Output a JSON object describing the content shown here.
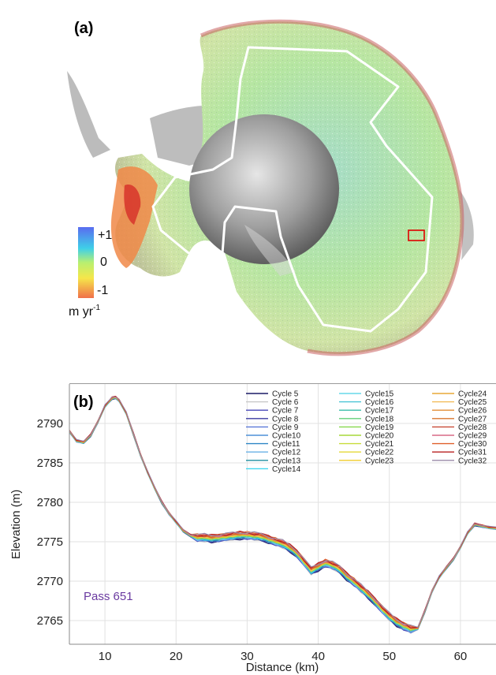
{
  "map": {
    "panel_label": "(a)",
    "colorbar": {
      "ticks": [
        "+1",
        "0",
        "-1"
      ],
      "unit_main": "m yr",
      "unit_sup": "-1",
      "colors": [
        "#5a6cf0",
        "#3fd0e8",
        "#b8f070",
        "#f6e64a",
        "#f0704a"
      ]
    },
    "highlight_box_color": "#e00000",
    "track_color": "#ffffff"
  },
  "chart_data": {
    "type": "line",
    "panel_label": "(b)",
    "annotation": "Pass 651",
    "xlabel": "Distance (km)",
    "ylabel": "Elevation (m)",
    "xlim": [
      5,
      65
    ],
    "ylim": [
      2762,
      2795
    ],
    "xticks": [
      10,
      20,
      30,
      40,
      50,
      60
    ],
    "yticks": [
      2765,
      2770,
      2775,
      2780,
      2785,
      2790
    ],
    "grid": true,
    "legend_position": "top-right",
    "profile": {
      "x": [
        5,
        6,
        7,
        8,
        9,
        10,
        11,
        11.5,
        12,
        13,
        14,
        15,
        16,
        17,
        18,
        19,
        20,
        21,
        22,
        23,
        24,
        25,
        26,
        27,
        28,
        29,
        30,
        31,
        32,
        33,
        34,
        35,
        36,
        37,
        38,
        39,
        40,
        41,
        42,
        43,
        44,
        45,
        46,
        47,
        48,
        49,
        50,
        51,
        52,
        53,
        54,
        55,
        56,
        57,
        58,
        59,
        60,
        61,
        62,
        63,
        64,
        65
      ],
      "y": [
        2789,
        2787.8,
        2787.6,
        2788.5,
        2790.2,
        2792.2,
        2793.2,
        2793.3,
        2792.9,
        2791.3,
        2788.7,
        2786,
        2783.8,
        2781.8,
        2780,
        2778.6,
        2777.5,
        2776.4,
        2775.8,
        2775.5,
        2775.5,
        2775.4,
        2775.5,
        2775.6,
        2775.7,
        2775.8,
        2775.8,
        2775.7,
        2775.6,
        2775.3,
        2775,
        2774.7,
        2774.2,
        2773.5,
        2772.4,
        2771.3,
        2771.8,
        2772.3,
        2772,
        2771.5,
        2770.6,
        2769.9,
        2769.1,
        2768.3,
        2767.4,
        2766.4,
        2765.5,
        2764.8,
        2764.3,
        2763.9,
        2764,
        2766.2,
        2768.7,
        2770.5,
        2771.7,
        2772.8,
        2774.3,
        2776.1,
        2777.2,
        2777,
        2776.8,
        2776.7
      ]
    },
    "series": [
      {
        "name": "Cycle 5",
        "color": "#1a1a66"
      },
      {
        "name": "Cycle 6",
        "color": "#c8c8c8"
      },
      {
        "name": "Cycle 7",
        "color": "#4848b8"
      },
      {
        "name": "Cycle 8",
        "color": "#3a3aa0"
      },
      {
        "name": "Cycle 9",
        "color": "#5a78d8"
      },
      {
        "name": "Cycle10",
        "color": "#4f90d8"
      },
      {
        "name": "Cycle11",
        "color": "#2e86c6"
      },
      {
        "name": "Cycle12",
        "color": "#6ab0e6"
      },
      {
        "name": "Cycle13",
        "color": "#1e8ea0"
      },
      {
        "name": "Cycle14",
        "color": "#40d6ee"
      },
      {
        "name": "Cycle15",
        "color": "#66d8ea"
      },
      {
        "name": "Cycle16",
        "color": "#4cc6d6"
      },
      {
        "name": "Cycle17",
        "color": "#3abdaa"
      },
      {
        "name": "Cycle18",
        "color": "#62d17a"
      },
      {
        "name": "Cycle19",
        "color": "#86d84e"
      },
      {
        "name": "Cycle20",
        "color": "#a7d83a"
      },
      {
        "name": "Cycle21",
        "color": "#c8dc3a"
      },
      {
        "name": "Cycle22",
        "color": "#e4d83a"
      },
      {
        "name": "Cycle23",
        "color": "#f0cc2a"
      },
      {
        "name": "Cycle24",
        "color": "#e8a836"
      },
      {
        "name": "Cycle25",
        "color": "#f2bc5a"
      },
      {
        "name": "Cycle26",
        "color": "#e28e36"
      },
      {
        "name": "Cycle27",
        "color": "#d8742e"
      },
      {
        "name": "Cycle28",
        "color": "#c84a36"
      },
      {
        "name": "Cycle29",
        "color": "#d86a86"
      },
      {
        "name": "Cycle30",
        "color": "#e0602c"
      },
      {
        "name": "Cycle31",
        "color": "#b82020"
      },
      {
        "name": "Cycle32",
        "color": "#9a8aa8"
      }
    ]
  }
}
